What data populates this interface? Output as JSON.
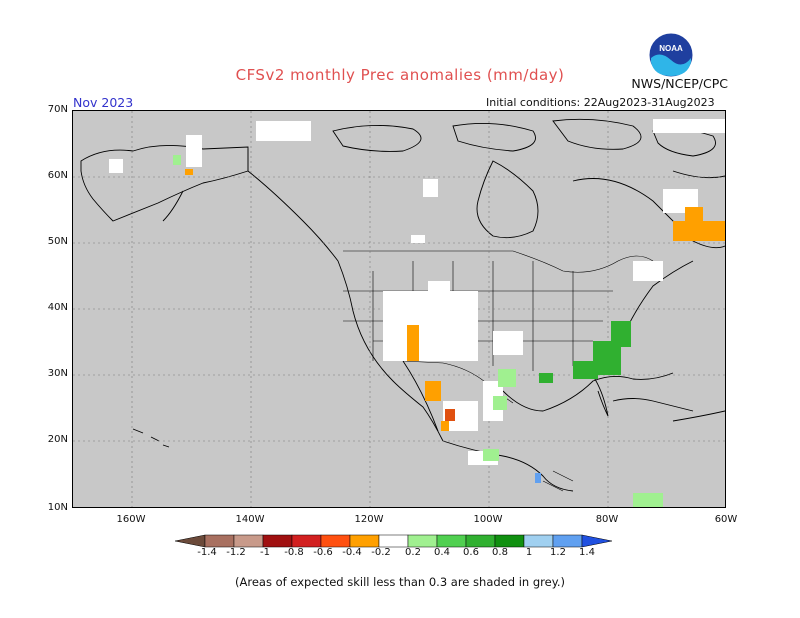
{
  "header": {
    "title": "CFSv2 monthly Prec anomalies (mm/day)",
    "agency": "NWS/NCEP/CPC",
    "valid_month": "Nov 2023",
    "initial_conditions": "Initial conditions: 22Aug2023-31Aug2023"
  },
  "map": {
    "lat_labels": [
      "70N",
      "60N",
      "50N",
      "40N",
      "30N",
      "20N",
      "10N"
    ],
    "lon_labels": [
      "160W",
      "140W",
      "120W",
      "100W",
      "80W",
      "60W"
    ],
    "background_color": "#c8c8c8",
    "ocean_color": "#c8c8c8"
  },
  "colorbar": {
    "labels": [
      "-1.4",
      "-1.2",
      "-1",
      "-0.8",
      "-0.6",
      "-0.4",
      "-0.2",
      "0.2",
      "0.4",
      "0.6",
      "0.8",
      "1",
      "1.2",
      "1.4"
    ],
    "colors": [
      "#6b4a3a",
      "#a87060",
      "#c89a8a",
      "#a01010",
      "#d22020",
      "#ff5010",
      "#ffa000",
      "#ffffff",
      "#a0f090",
      "#50d050",
      "#30b030",
      "#109010",
      "#a0d0f0",
      "#60a0f0",
      "#2050e0"
    ]
  },
  "footnote": "(Areas of expected skill less than 0.3 are shaded in grey.)",
  "logo": {
    "text": "NOAA"
  }
}
